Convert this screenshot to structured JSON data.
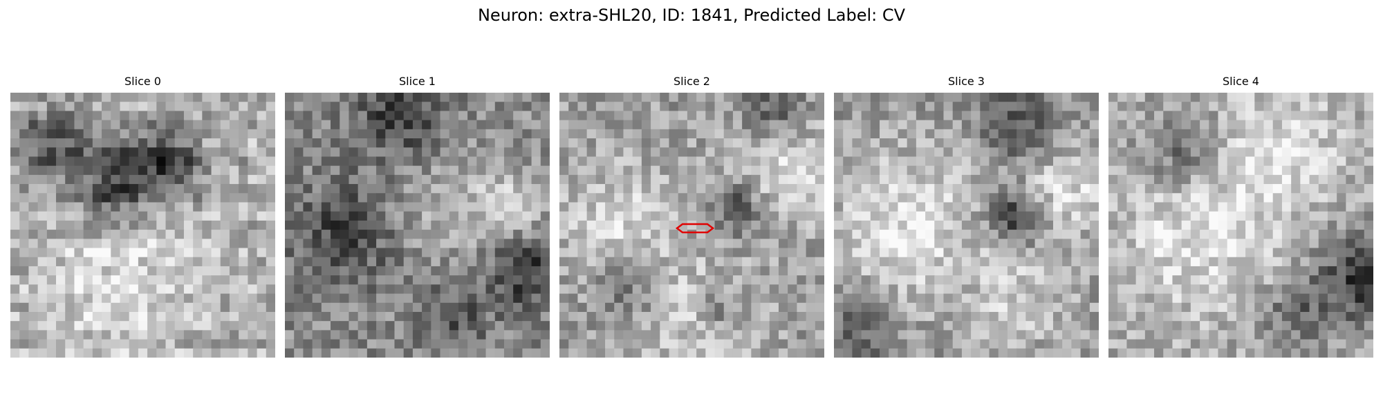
{
  "figure": {
    "title": "Neuron: extra-SHL20, ID: 1841, Predicted Label: CV"
  },
  "panels": [
    {
      "title": "Slice 0",
      "marker": false,
      "seed": 11,
      "texture": "smooth-dark-band"
    },
    {
      "title": "Slice 1",
      "marker": false,
      "seed": 23,
      "texture": "mottled"
    },
    {
      "title": "Slice 2",
      "marker": true,
      "seed": 37,
      "texture": "cells-with-boundaries"
    },
    {
      "title": "Slice 3",
      "marker": false,
      "seed": 49,
      "texture": "bright-blobs"
    },
    {
      "title": "Slice 4",
      "marker": false,
      "seed": 61,
      "texture": "bright-blobs-dark-edge"
    }
  ],
  "style": {
    "marker_color": "#e00000",
    "colormap": "grayscale"
  }
}
